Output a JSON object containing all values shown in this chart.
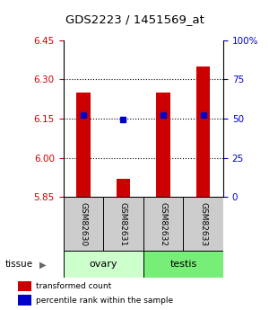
{
  "title": "GDS2223 / 1451569_at",
  "samples": [
    "GSM82630",
    "GSM82631",
    "GSM82632",
    "GSM82633"
  ],
  "tissue_labels": [
    "ovary",
    "testis"
  ],
  "bar_bottoms": [
    5.85,
    5.85,
    5.85,
    5.85
  ],
  "bar_tops": [
    6.25,
    5.92,
    6.25,
    6.35
  ],
  "percentile_values": [
    6.165,
    6.145,
    6.165,
    6.165
  ],
  "ylim_min": 5.85,
  "ylim_max": 6.45,
  "yticks_left": [
    5.85,
    6.0,
    6.15,
    6.3,
    6.45
  ],
  "yticks_right": [
    0,
    25,
    50,
    75,
    100
  ],
  "bar_color": "#cc0000",
  "percentile_color": "#0000cc",
  "left_tick_color": "#cc0000",
  "right_tick_color": "#0000cc",
  "tissue_colors": [
    "#ccffcc",
    "#77ee77"
  ],
  "sample_bg_color": "#cccccc",
  "legend_bar_label": "transformed count",
  "legend_pct_label": "percentile rank within the sample",
  "tissue_row_label": "tissue",
  "bar_width": 0.35
}
